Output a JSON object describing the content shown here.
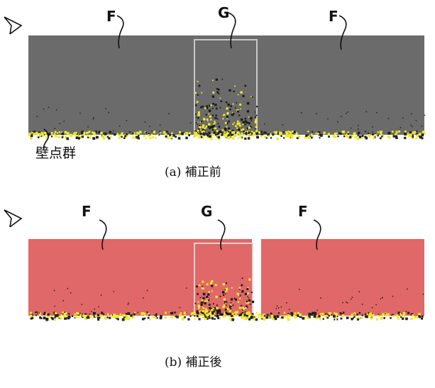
{
  "panels": [
    {
      "labels": [
        "F",
        "G",
        "F"
      ],
      "annotation": "壁点群",
      "caption": "(a)  補正前"
    },
    {
      "labels": [
        "F",
        "G",
        "F"
      ],
      "caption": "(b)  補正後"
    }
  ]
}
